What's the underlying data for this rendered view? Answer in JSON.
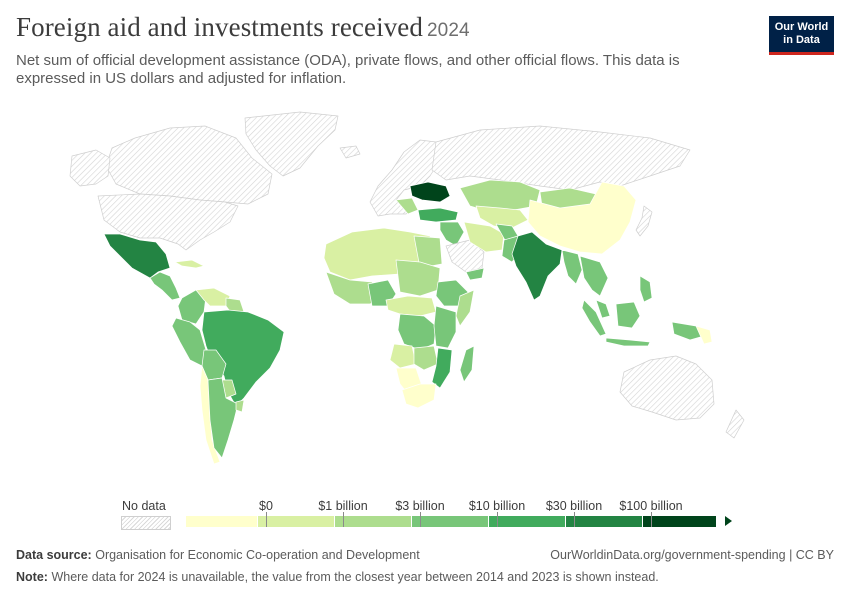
{
  "header": {
    "title": "Foreign aid and investments received",
    "year": "2024",
    "subtitle": "Net sum of official development assistance (ODA), private flows, and other official flows. This data is expressed in US dollars and adjusted for inflation."
  },
  "logo": {
    "line1": "Our World",
    "line2": "in Data"
  },
  "legend": {
    "no_data": "No data",
    "bins": [
      "$0",
      "$1 billion",
      "$3 billion",
      "$10 billion",
      "$30 billion",
      "$100 billion"
    ],
    "colors": [
      "#ffffcc",
      "#d9f0a3",
      "#addd8e",
      "#78c679",
      "#41ab5d",
      "#238443",
      "#00441b"
    ],
    "no_data_color": "#e0e0e0"
  },
  "map": {
    "regions": [
      {
        "name": "Mexico",
        "category": 5
      },
      {
        "name": "India",
        "category": 5
      },
      {
        "name": "Ukraine",
        "category": 6
      },
      {
        "name": "Brazil",
        "category": 4
      },
      {
        "name": "China",
        "category": 0
      },
      {
        "name": "Turkey",
        "category": 4
      },
      {
        "name": "Indonesia",
        "category": 3
      }
    ]
  },
  "footer": {
    "source_label": "Data source:",
    "source_text": "Organisation for Economic Co-operation and Development",
    "url": "OurWorldinData.org/government-spending | CC BY",
    "note_label": "Note:",
    "note_text": "Where data for 2024 is unavailable, the value from the closest year between 2014 and 2023 is shown instead."
  }
}
